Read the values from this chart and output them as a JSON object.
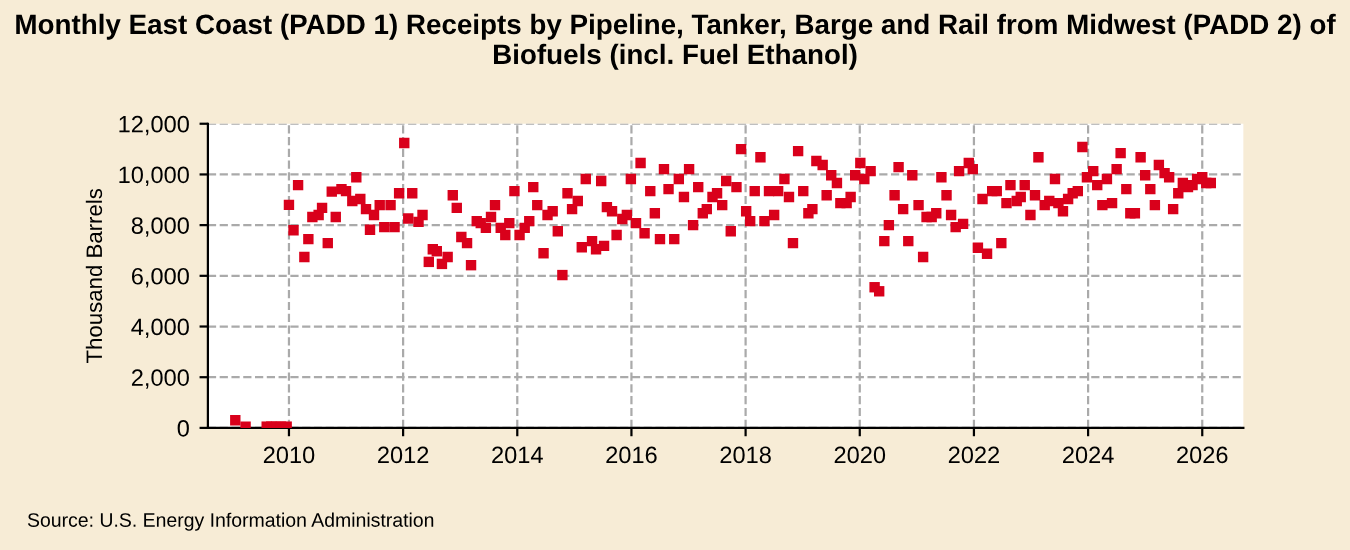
{
  "chart_data": {
    "type": "scatter",
    "title": "Monthly East Coast (PADD 1) Receipts by Pipeline, Tanker, Barge and Rail from Midwest (PADD 2) of Biofuels (incl. Fuel Ethanol)",
    "ylabel": "Thousand Barrels",
    "annotations": [
      "Source: U.S. Energy Information Administration"
    ],
    "marker": "square",
    "grid": true,
    "line_style": "dashed",
    "xlim": [
      2008.58,
      2026.72
    ],
    "xticks": [
      2010,
      2012,
      2014,
      2016,
      2018,
      2020,
      2022,
      2024,
      2026
    ],
    "ylim": [
      0,
      12000
    ],
    "yticks": [
      0,
      {
        "value": 2000,
        "label": "2,000"
      },
      {
        "value": 4000,
        "label": "4,000"
      },
      {
        "value": 6000,
        "label": "6,000"
      },
      {
        "value": 8000,
        "label": "8,000"
      },
      {
        "value": 10000,
        "label": "10,000"
      },
      {
        "value": 12000,
        "label": "12,000"
      }
    ],
    "series": [
      {
        "color": "#d9001b",
        "x": [
          2009.06,
          2009.24,
          2009.61,
          2009.69,
          2009.78,
          2009.86,
          2009.96,
          2010.0,
          2010.08,
          2010.16,
          2010.27,
          2010.34,
          2010.41,
          2010.52,
          2010.58,
          2010.68,
          2010.75,
          2010.82,
          2010.92,
          2011.0,
          2011.11,
          2011.18,
          2011.25,
          2011.35,
          2011.42,
          2011.49,
          2011.59,
          2011.67,
          2011.78,
          2011.85,
          2011.93,
          2012.02,
          2012.09,
          2012.16,
          2012.27,
          2012.34,
          2012.45,
          2012.52,
          2012.59,
          2012.68,
          2012.78,
          2012.87,
          2012.94,
          2013.02,
          2013.12,
          2013.19,
          2013.29,
          2013.36,
          2013.45,
          2013.54,
          2013.61,
          2013.71,
          2013.79,
          2013.86,
          2013.95,
          2014.04,
          2014.13,
          2014.21,
          2014.28,
          2014.35,
          2014.46,
          2014.53,
          2014.62,
          2014.71,
          2014.79,
          2014.88,
          2014.96,
          2015.06,
          2015.13,
          2015.2,
          2015.31,
          2015.38,
          2015.47,
          2015.52,
          2015.57,
          2015.66,
          2015.74,
          2015.84,
          2015.92,
          2015.99,
          2016.08,
          2016.16,
          2016.23,
          2016.33,
          2016.41,
          2016.5,
          2016.57,
          2016.65,
          2016.75,
          2016.83,
          2016.92,
          2017.01,
          2017.08,
          2017.17,
          2017.25,
          2017.32,
          2017.42,
          2017.5,
          2017.59,
          2017.66,
          2017.74,
          2017.84,
          2017.92,
          2018.01,
          2018.08,
          2018.16,
          2018.26,
          2018.33,
          2018.41,
          2018.5,
          2018.57,
          2018.68,
          2018.76,
          2018.83,
          2018.92,
          2019.01,
          2019.1,
          2019.17,
          2019.24,
          2019.35,
          2019.42,
          2019.5,
          2019.6,
          2019.66,
          2019.77,
          2019.84,
          2019.92,
          2020.01,
          2020.08,
          2020.19,
          2020.26,
          2020.34,
          2020.43,
          2020.51,
          2020.61,
          2020.68,
          2020.76,
          2020.85,
          2020.92,
          2021.03,
          2021.11,
          2021.17,
          2021.26,
          2021.34,
          2021.43,
          2021.52,
          2021.6,
          2021.68,
          2021.74,
          2021.81,
          2021.91,
          2021.98,
          2022.07,
          2022.15,
          2022.23,
          2022.32,
          2022.4,
          2022.48,
          2022.57,
          2022.64,
          2022.75,
          2022.82,
          2022.89,
          2022.99,
          2023.07,
          2023.13,
          2023.24,
          2023.32,
          2023.42,
          2023.48,
          2023.56,
          2023.65,
          2023.73,
          2023.82,
          2023.9,
          2023.98,
          2024.09,
          2024.16,
          2024.25,
          2024.33,
          2024.42,
          2024.5,
          2024.57,
          2024.67,
          2024.74,
          2024.82,
          2024.92,
          2025.0,
          2025.09,
          2025.17,
          2025.24,
          2025.34,
          2025.42,
          2025.49,
          2025.58,
          2025.66,
          2025.75,
          2025.83,
          2025.91,
          2026.0,
          2026.07,
          2026.15
        ],
        "values": [
          300,
          50,
          50,
          50,
          50,
          50,
          50,
          8800,
          7800,
          9580,
          6740,
          7450,
          8320,
          8400,
          8680,
          7290,
          9320,
          8320,
          9420,
          9340,
          8950,
          9890,
          9030,
          8630,
          7820,
          8400,
          8790,
          7920,
          8790,
          7920,
          9260,
          11240,
          8260,
          9260,
          8130,
          8400,
          6550,
          7050,
          6970,
          6470,
          6740,
          9180,
          8680,
          7530,
          7290,
          6420,
          8160,
          8080,
          7890,
          8320,
          8790,
          7890,
          7610,
          8080,
          9340,
          7610,
          7890,
          8160,
          9500,
          8790,
          6890,
          8400,
          8550,
          7760,
          6030,
          9260,
          8630,
          8950,
          7130,
          9820,
          7370,
          7050,
          9740,
          7180,
          8710,
          8550,
          7610,
          8240,
          8400,
          9820,
          8080,
          10450,
          7680,
          9340,
          8470,
          7450,
          10210,
          9420,
          7450,
          9820,
          9110,
          10210,
          8000,
          9500,
          8470,
          8630,
          9110,
          9260,
          8790,
          9740,
          7760,
          9500,
          11000,
          8550,
          8160,
          9340,
          10680,
          8160,
          9340,
          8400,
          9340,
          9820,
          9110,
          7290,
          10920,
          9340,
          8470,
          8630,
          10530,
          10370,
          9180,
          9970,
          9660,
          8870,
          8870,
          9110,
          9970,
          10450,
          9820,
          10130,
          5550,
          5390,
          7370,
          8000,
          9180,
          10290,
          8630,
          7370,
          9970,
          8790,
          6740,
          8320,
          8320,
          8470,
          9890,
          9180,
          8400,
          7920,
          10130,
          8050,
          10450,
          10210,
          7110,
          9030,
          6870,
          9340,
          9340,
          7290,
          8870,
          9580,
          8950,
          9110,
          9580,
          8400,
          9180,
          10680,
          8790,
          8950,
          9820,
          8870,
          8550,
          9030,
          9260,
          9340,
          11080,
          9890,
          10130,
          9580,
          8790,
          9820,
          8870,
          10210,
          10840,
          9420,
          8470,
          8470,
          10680,
          9970,
          9420,
          8790,
          10370,
          10050,
          9890,
          8630,
          9260,
          9660,
          9500,
          9580,
          9820,
          9890,
          9660,
          9660
        ]
      }
    ]
  }
}
